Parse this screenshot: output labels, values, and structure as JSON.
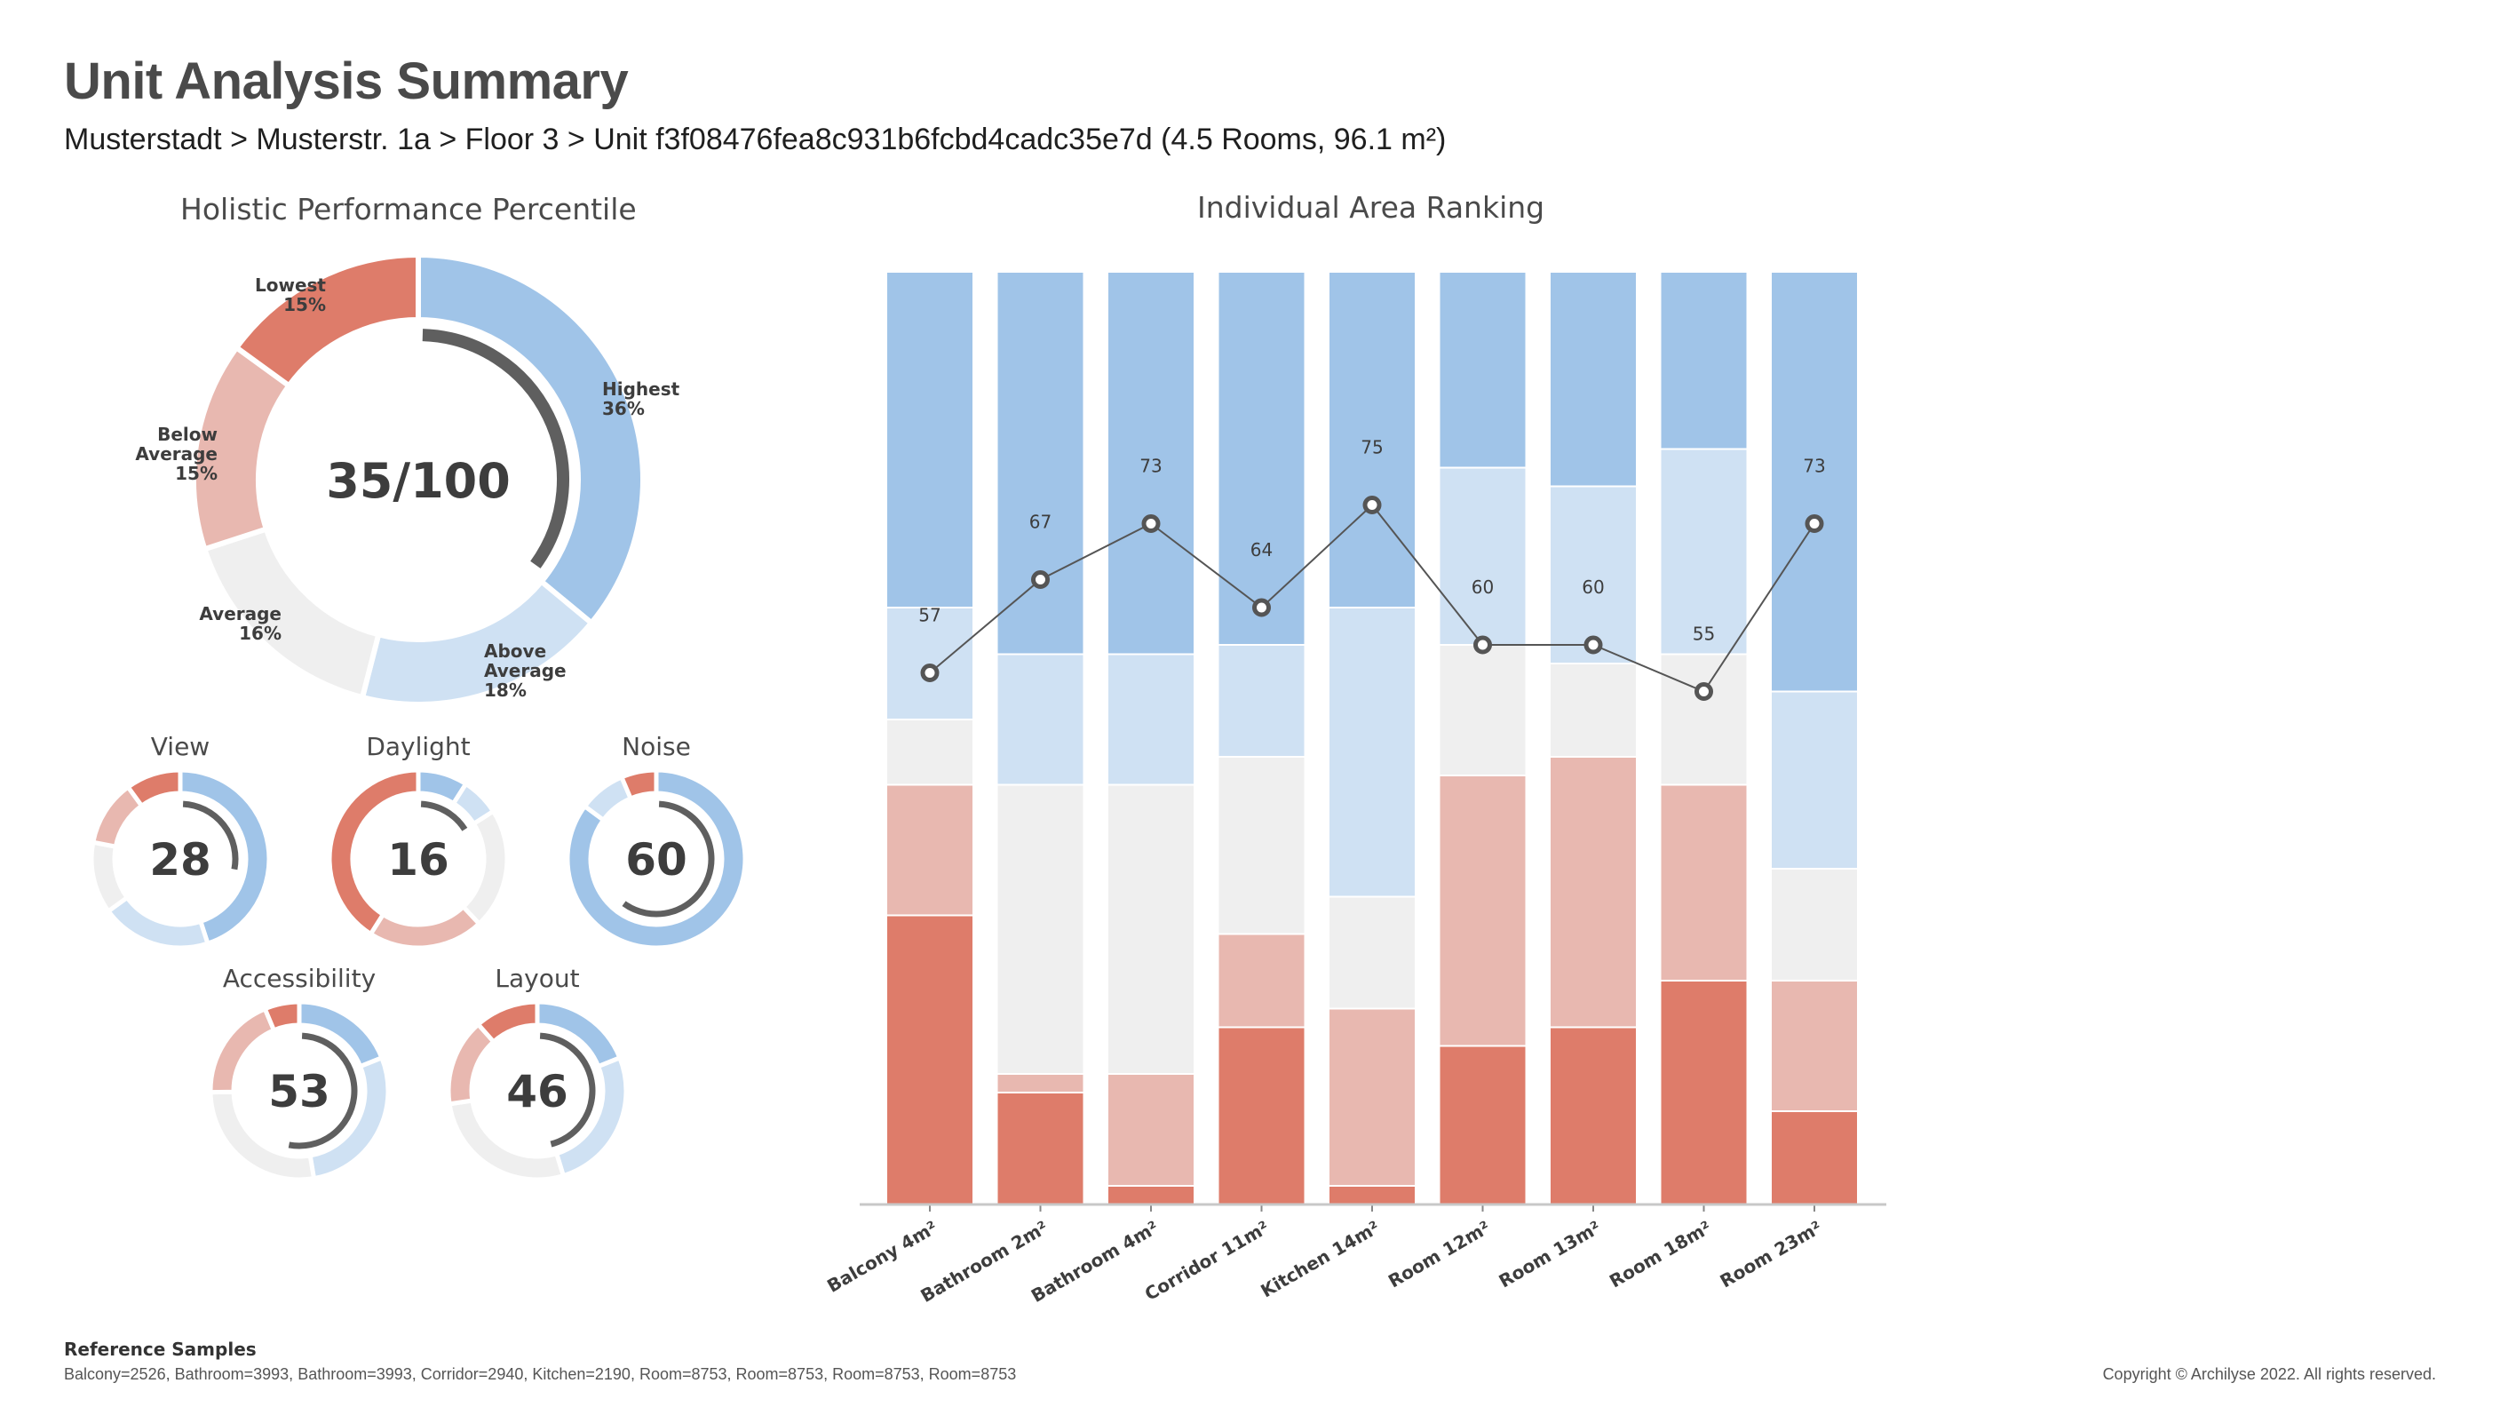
{
  "header": {
    "title": "Unit Analysis Summary",
    "breadcrumb": "Musterstadt > Musterstr. 1a > Floor 3 > Unit f3f08476fea8c931b6fcbd4cadc35e7d (4.5 Rooms, 96.1 m²)"
  },
  "colors": {
    "lowest": "#de7c6a",
    "below_average": "#e8b8b0",
    "average": "#efefef",
    "above_average": "#cfe1f3",
    "highest": "#a0c4e8",
    "ring": "#5f5f5f",
    "marker": "#555555"
  },
  "chart_data": [
    {
      "type": "pie",
      "id": "holistic",
      "title": "Holistic Performance Percentile",
      "score_label": "35/100",
      "score": 35,
      "slices": [
        {
          "label": "Highest",
          "value_label": "36%",
          "value": 36,
          "color_key": "highest"
        },
        {
          "label": "Above Average",
          "value_label": "18%",
          "value": 18,
          "color_key": "above_average"
        },
        {
          "label": "Average",
          "value_label": "16%",
          "value": 16,
          "color_key": "average"
        },
        {
          "label": "Below Average",
          "value_label": "15%",
          "value": 15,
          "color_key": "below_average"
        },
        {
          "label": "Lowest",
          "value_label": "15%",
          "value": 15,
          "color_key": "lowest"
        }
      ]
    },
    {
      "type": "pie",
      "id": "view",
      "title": "View",
      "score": 28,
      "score_label": "28",
      "values": [
        45,
        20,
        13,
        12,
        10
      ]
    },
    {
      "type": "pie",
      "id": "daylight",
      "title": "Daylight",
      "score": 16,
      "score_label": "16",
      "values": [
        9,
        7,
        22,
        21,
        41
      ]
    },
    {
      "type": "pie",
      "id": "noise",
      "title": "Noise",
      "score": 60,
      "score_label": "60",
      "values": [
        80,
        8,
        0,
        0,
        6
      ]
    },
    {
      "type": "pie",
      "id": "accessibility",
      "title": "Accessibility",
      "score": 53,
      "score_label": "53",
      "values": [
        18,
        27,
        26,
        18,
        6
      ]
    },
    {
      "type": "pie",
      "id": "layout",
      "title": "Layout",
      "score": 46,
      "score_label": "46",
      "values": [
        18,
        25,
        26,
        15,
        11
      ]
    },
    {
      "type": "bar",
      "id": "area-ranking",
      "title": "Individual Area Ranking",
      "stacked": true,
      "ylim": [
        0,
        100
      ],
      "categories": [
        "Balcony 4m²",
        "Bathroom 2m²",
        "Bathroom 4m²",
        "Corridor 11m²",
        "Kitchen 14m²",
        "Room 12m²",
        "Room 13m²",
        "Room 18m²",
        "Room 23m²"
      ],
      "series": [
        {
          "color_key": "lowest",
          "values": [
            31,
            12,
            2,
            19,
            2,
            17,
            19,
            24,
            10
          ]
        },
        {
          "color_key": "below_average",
          "values": [
            14,
            2,
            12,
            10,
            19,
            29,
            29,
            21,
            14
          ]
        },
        {
          "color_key": "average",
          "values": [
            7,
            31,
            31,
            19,
            12,
            14,
            10,
            14,
            12
          ]
        },
        {
          "color_key": "above_average",
          "values": [
            12,
            14,
            14,
            12,
            31,
            19,
            19,
            22,
            19
          ]
        },
        {
          "color_key": "highest",
          "values": [
            36,
            41,
            41,
            40,
            36,
            21,
            23,
            19,
            45
          ]
        }
      ],
      "line": {
        "values": [
          57,
          67,
          73,
          64,
          75,
          60,
          60,
          55,
          73
        ]
      }
    }
  ],
  "footer": {
    "reference_title": "Reference Samples",
    "reference_values": "Balcony=2526, Bathroom=3993, Bathroom=3993, Corridor=2940, Kitchen=2190, Room=8753, Room=8753, Room=8753, Room=8753",
    "copyright": "Copyright © Archilyse 2022. All rights reserved."
  }
}
